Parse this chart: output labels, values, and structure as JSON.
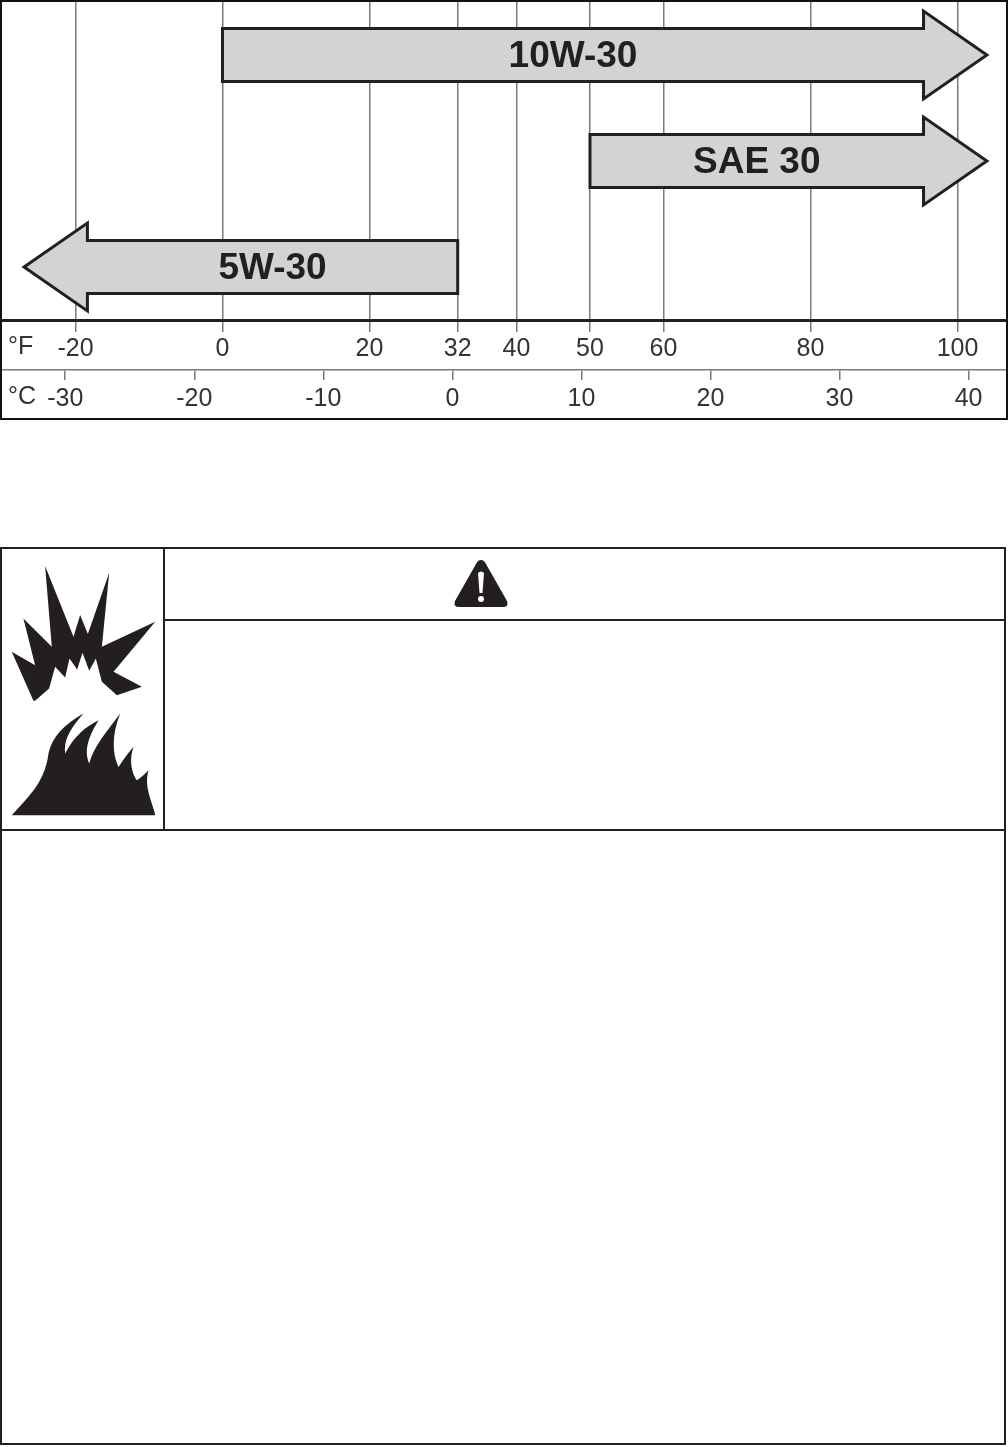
{
  "chart_data": {
    "type": "bar",
    "orientation": "horizontal",
    "categories": [
      "10W-30",
      "SAE 30",
      "5W-30"
    ],
    "base": [
      0,
      50,
      32
    ],
    "values": [
      104,
      54,
      -59
    ],
    "color": "#d1d3d4",
    "xlabel": "°F",
    "xlim": [
      -30,
      106.6
    ],
    "xticks": [
      -20,
      0,
      20,
      32,
      40,
      50,
      60,
      80,
      100
    ],
    "x2label": "°C",
    "x2lim": [
      -34.9,
      42.9
    ],
    "x2ticks": [
      -30,
      -20,
      -10,
      0,
      10,
      20,
      30,
      40
    ],
    "grid": "x",
    "tick_labels": "x"
  }
}
